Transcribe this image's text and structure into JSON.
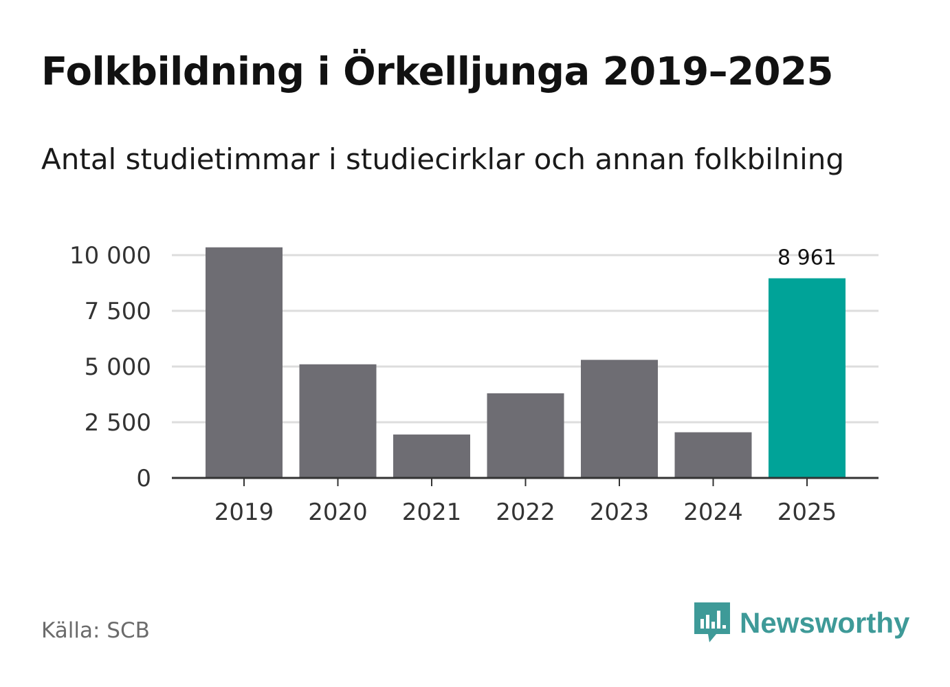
{
  "title": "Folkbildning i Örkelljunga 2019–2025",
  "subtitle": "Antal studietimmar i studiecirklar och annan folkbilning",
  "source": "Källa: SCB",
  "brand": {
    "name": "Newsworthy",
    "icon": "newsworthy-logo-icon",
    "color": "#3e9a98"
  },
  "colors": {
    "bar": "#6e6d73",
    "highlight": "#00a398",
    "grid": "#dddddd",
    "axis": "#333333"
  },
  "chart_data": {
    "type": "bar",
    "title": "Folkbildning i Örkelljunga 2019–2025",
    "subtitle": "Antal studietimmar i studiecirklar och annan folkbilning",
    "categories": [
      "2019",
      "2020",
      "2021",
      "2022",
      "2023",
      "2024",
      "2025"
    ],
    "values": [
      10350,
      5100,
      1950,
      3800,
      5300,
      2050,
      8961
    ],
    "highlight_index": 6,
    "data_labels": [
      {
        "index": 6,
        "text": "8 961"
      }
    ],
    "ylim": [
      0,
      10000
    ],
    "yticks": [
      0,
      2500,
      5000,
      7500,
      10000
    ],
    "ytick_labels": [
      "0",
      "2 500",
      "5 000",
      "7 500",
      "10 000"
    ],
    "grid": true,
    "xlabel": "",
    "ylabel": ""
  }
}
